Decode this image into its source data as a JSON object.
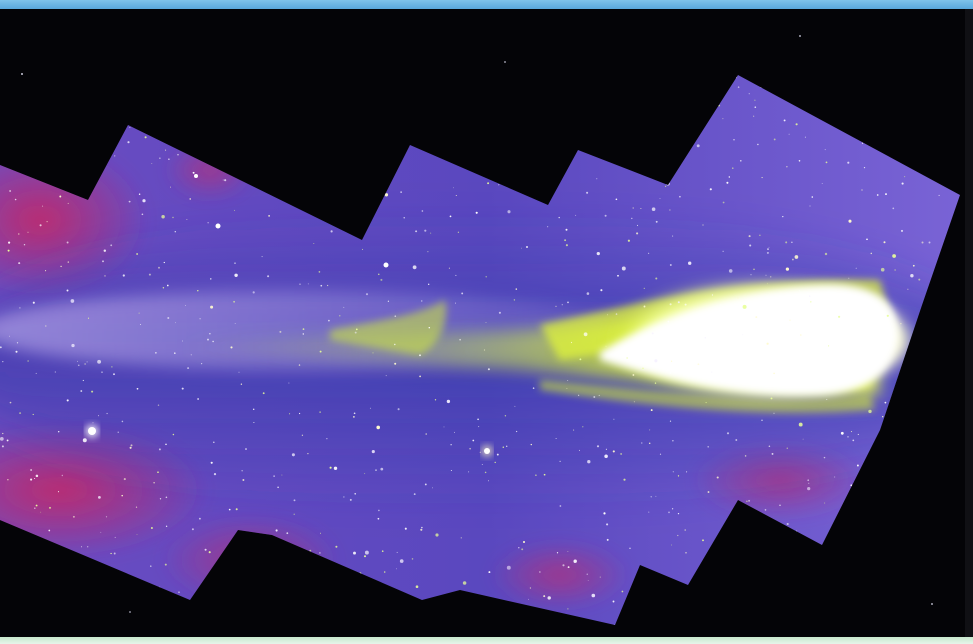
{
  "photo": {
    "subject": "comet-mosaic",
    "colors": {
      "sky": "#040407",
      "field": "#6a52c8",
      "field_deep": "#3b3aa8",
      "magenta": "#b8307a",
      "tail": "#d7f02a",
      "nucleus": "#ffffff",
      "top_border": "#6cb6e4",
      "bottom_border": "#d8efdc"
    }
  }
}
